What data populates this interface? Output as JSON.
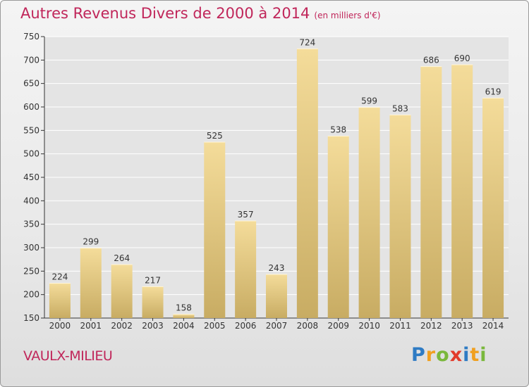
{
  "chart_data": {
    "type": "bar",
    "title": "Autres Revenus Divers de 2000 à 2014",
    "unit_note": "(en milliers d'€)",
    "categories": [
      "2000",
      "2001",
      "2002",
      "2003",
      "2004",
      "2005",
      "2006",
      "2007",
      "2008",
      "2009",
      "2010",
      "2011",
      "2012",
      "2013",
      "2014"
    ],
    "values": [
      224,
      299,
      264,
      217,
      158,
      525,
      357,
      243,
      724,
      538,
      599,
      583,
      686,
      690,
      619
    ],
    "ylim": [
      150,
      750
    ],
    "yticks": [
      150,
      200,
      250,
      300,
      350,
      400,
      450,
      500,
      550,
      600,
      650,
      700,
      750
    ],
    "grid": true,
    "bar_color_light": "#f4dc9a",
    "bar_color_dark": "#c8ac63"
  },
  "location": "VAULX-MILIEU",
  "logo": {
    "letters": [
      "P",
      "r",
      "o",
      "x",
      "i",
      "t",
      "i"
    ],
    "colors": [
      "#2e7bc4",
      "#f0a020",
      "#7ab83c",
      "#e23a2b",
      "#2e7bc4",
      "#f0a020",
      "#7ab83c"
    ]
  },
  "colors": {
    "title": "#c0265a",
    "axis": "#333333",
    "grid": "#ffffff"
  }
}
